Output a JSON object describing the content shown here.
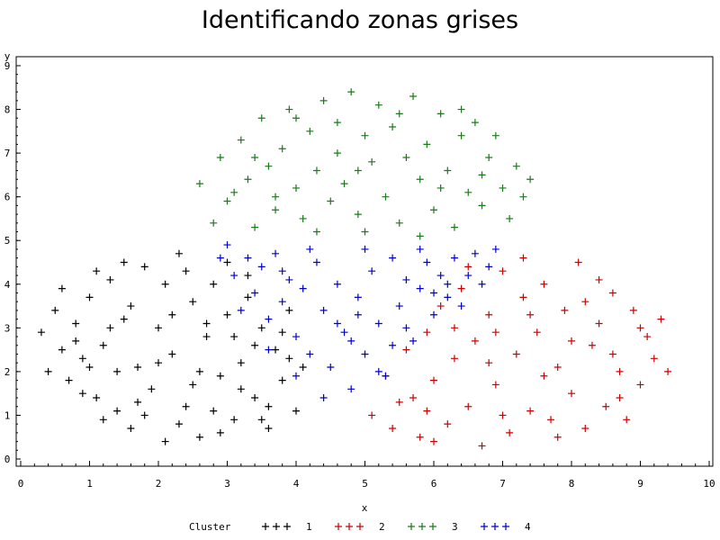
{
  "chart_data": {
    "type": "scatter",
    "title": "Identificando zonas grises",
    "xlabel": "x",
    "ylabel": "y",
    "xlim": [
      0,
      10
    ],
    "ylim": [
      0,
      9
    ],
    "xticks": [
      "0",
      "1",
      "2",
      "3",
      "4",
      "5",
      "6",
      "7",
      "8",
      "9",
      "10"
    ],
    "yticks": [
      "0",
      "1",
      "2",
      "3",
      "4",
      "5",
      "6",
      "7",
      "8",
      "9"
    ],
    "marker": "plus",
    "grid": false,
    "legend": {
      "title": "Cluster",
      "placement": "bottom-center",
      "marker_text": "+ + +"
    },
    "series": [
      {
        "name": "1",
        "color": "#000000",
        "points": [
          [
            0.3,
            2.9
          ],
          [
            0.5,
            3.4
          ],
          [
            0.6,
            2.5
          ],
          [
            0.7,
            1.8
          ],
          [
            0.8,
            3.1
          ],
          [
            0.9,
            2.3
          ],
          [
            1.0,
            3.7
          ],
          [
            1.1,
            1.4
          ],
          [
            1.2,
            2.6
          ],
          [
            1.3,
            4.1
          ],
          [
            1.4,
            1.1
          ],
          [
            1.5,
            3.2
          ],
          [
            1.6,
            0.7
          ],
          [
            1.7,
            2.1
          ],
          [
            1.8,
            4.4
          ],
          [
            1.9,
            1.6
          ],
          [
            2.0,
            3.0
          ],
          [
            2.1,
            0.4
          ],
          [
            2.2,
            2.4
          ],
          [
            2.3,
            4.7
          ],
          [
            2.4,
            1.2
          ],
          [
            2.5,
            3.6
          ],
          [
            2.6,
            0.5
          ],
          [
            2.7,
            2.8
          ],
          [
            2.8,
            4.0
          ],
          [
            2.9,
            1.9
          ],
          [
            3.0,
            3.3
          ],
          [
            3.1,
            0.9
          ],
          [
            3.2,
            2.2
          ],
          [
            3.3,
            4.2
          ],
          [
            3.4,
            1.4
          ],
          [
            3.5,
            3.0
          ],
          [
            3.6,
            0.7
          ],
          [
            3.7,
            2.5
          ],
          [
            3.8,
            1.8
          ],
          [
            3.9,
            3.4
          ],
          [
            4.0,
            1.1
          ],
          [
            4.1,
            2.1
          ],
          [
            0.4,
            2.0
          ],
          [
            0.6,
            3.9
          ],
          [
            0.9,
            1.5
          ],
          [
            1.1,
            4.3
          ],
          [
            1.2,
            0.9
          ],
          [
            1.4,
            2.0
          ],
          [
            1.6,
            3.5
          ],
          [
            1.8,
            1.0
          ],
          [
            2.0,
            2.2
          ],
          [
            2.1,
            4.0
          ],
          [
            2.3,
            0.8
          ],
          [
            2.5,
            1.7
          ],
          [
            2.7,
            3.1
          ],
          [
            2.9,
            0.6
          ],
          [
            3.0,
            4.5
          ],
          [
            3.2,
            1.6
          ],
          [
            3.4,
            2.6
          ],
          [
            3.6,
            1.2
          ],
          [
            3.8,
            2.9
          ],
          [
            0.8,
            2.7
          ],
          [
            1.3,
            3.0
          ],
          [
            1.7,
            1.3
          ],
          [
            2.2,
            3.3
          ],
          [
            2.6,
            2.0
          ],
          [
            3.1,
            2.8
          ],
          [
            3.5,
            0.9
          ],
          [
            3.9,
            2.3
          ],
          [
            1.0,
            2.1
          ],
          [
            1.5,
            4.5
          ],
          [
            2.4,
            4.3
          ],
          [
            2.8,
            1.1
          ],
          [
            3.3,
            3.7
          ]
        ]
      },
      {
        "name": "2",
        "color": "#cc0000",
        "points": [
          [
            5.1,
            1.0
          ],
          [
            5.3,
            1.9
          ],
          [
            5.4,
            0.7
          ],
          [
            5.6,
            2.5
          ],
          [
            5.7,
            1.4
          ],
          [
            5.8,
            0.5
          ],
          [
            5.9,
            2.9
          ],
          [
            6.0,
            1.8
          ],
          [
            6.1,
            3.5
          ],
          [
            6.2,
            0.8
          ],
          [
            6.3,
            2.3
          ],
          [
            6.4,
            3.9
          ],
          [
            6.5,
            1.2
          ],
          [
            6.6,
            2.7
          ],
          [
            6.7,
            0.3
          ],
          [
            6.8,
            3.3
          ],
          [
            6.9,
            1.7
          ],
          [
            7.0,
            4.3
          ],
          [
            7.1,
            0.6
          ],
          [
            7.2,
            2.4
          ],
          [
            7.3,
            3.7
          ],
          [
            7.4,
            1.1
          ],
          [
            7.5,
            2.9
          ],
          [
            7.6,
            4.0
          ],
          [
            7.7,
            0.9
          ],
          [
            7.8,
            2.1
          ],
          [
            7.9,
            3.4
          ],
          [
            8.0,
            1.5
          ],
          [
            8.1,
            4.5
          ],
          [
            8.2,
            0.7
          ],
          [
            8.3,
            2.6
          ],
          [
            8.4,
            3.1
          ],
          [
            8.5,
            1.2
          ],
          [
            8.6,
            3.8
          ],
          [
            8.7,
            2.0
          ],
          [
            8.8,
            0.9
          ],
          [
            8.9,
            3.4
          ],
          [
            9.0,
            1.7
          ],
          [
            9.1,
            2.8
          ],
          [
            9.2,
            2.3
          ],
          [
            9.3,
            3.2
          ],
          [
            9.4,
            2.0
          ],
          [
            5.5,
            1.3
          ],
          [
            6.0,
            0.4
          ],
          [
            6.3,
            3.0
          ],
          [
            6.8,
            2.2
          ],
          [
            7.0,
            1.0
          ],
          [
            7.3,
            4.6
          ],
          [
            7.6,
            1.9
          ],
          [
            8.0,
            2.7
          ],
          [
            8.4,
            4.1
          ],
          [
            8.7,
            1.4
          ],
          [
            9.0,
            3.0
          ],
          [
            6.5,
            4.4
          ],
          [
            7.8,
            0.5
          ],
          [
            8.2,
            3.6
          ],
          [
            6.9,
            2.9
          ],
          [
            7.4,
            3.3
          ],
          [
            5.9,
            1.1
          ],
          [
            8.6,
            2.4
          ]
        ]
      },
      {
        "name": "3",
        "color": "#1a7a1a",
        "points": [
          [
            2.6,
            6.3
          ],
          [
            2.8,
            5.4
          ],
          [
            2.9,
            6.9
          ],
          [
            3.0,
            5.9
          ],
          [
            3.2,
            7.3
          ],
          [
            3.3,
            6.4
          ],
          [
            3.4,
            5.3
          ],
          [
            3.5,
            7.8
          ],
          [
            3.6,
            6.7
          ],
          [
            3.7,
            5.7
          ],
          [
            3.8,
            7.1
          ],
          [
            3.9,
            8.0
          ],
          [
            4.0,
            6.2
          ],
          [
            4.1,
            5.5
          ],
          [
            4.2,
            7.5
          ],
          [
            4.3,
            6.6
          ],
          [
            4.4,
            8.2
          ],
          [
            4.5,
            5.9
          ],
          [
            4.6,
            7.0
          ],
          [
            4.7,
            6.3
          ],
          [
            4.8,
            8.4
          ],
          [
            4.9,
            5.6
          ],
          [
            5.0,
            7.4
          ],
          [
            5.1,
            6.8
          ],
          [
            5.2,
            8.1
          ],
          [
            5.3,
            6.0
          ],
          [
            5.4,
            7.6
          ],
          [
            5.5,
            5.4
          ],
          [
            5.6,
            6.9
          ],
          [
            5.7,
            8.3
          ],
          [
            5.8,
            6.4
          ],
          [
            5.9,
            7.2
          ],
          [
            6.0,
            5.7
          ],
          [
            6.1,
            7.9
          ],
          [
            6.2,
            6.6
          ],
          [
            6.3,
            5.3
          ],
          [
            6.4,
            7.4
          ],
          [
            6.5,
            6.1
          ],
          [
            6.6,
            7.7
          ],
          [
            6.7,
            5.8
          ],
          [
            6.8,
            6.9
          ],
          [
            6.9,
            7.4
          ],
          [
            7.0,
            6.2
          ],
          [
            7.1,
            5.5
          ],
          [
            7.2,
            6.7
          ],
          [
            7.3,
            6.0
          ],
          [
            7.4,
            6.4
          ],
          [
            3.1,
            6.1
          ],
          [
            3.7,
            6.0
          ],
          [
            4.3,
            5.2
          ],
          [
            4.9,
            6.6
          ],
          [
            5.5,
            7.9
          ],
          [
            6.1,
            6.2
          ],
          [
            6.7,
            6.5
          ],
          [
            4.0,
            7.8
          ],
          [
            5.0,
            5.2
          ],
          [
            5.8,
            5.1
          ],
          [
            3.4,
            6.9
          ],
          [
            4.6,
            7.7
          ],
          [
            6.4,
            8.0
          ]
        ]
      },
      {
        "name": "4",
        "color": "#0000cc",
        "points": [
          [
            2.9,
            4.6
          ],
          [
            3.0,
            4.9
          ],
          [
            3.1,
            4.2
          ],
          [
            3.3,
            4.6
          ],
          [
            3.4,
            3.8
          ],
          [
            3.5,
            4.4
          ],
          [
            3.6,
            3.2
          ],
          [
            3.7,
            4.7
          ],
          [
            3.8,
            3.6
          ],
          [
            3.9,
            4.1
          ],
          [
            4.0,
            2.8
          ],
          [
            4.1,
            3.9
          ],
          [
            4.2,
            2.4
          ],
          [
            4.3,
            4.5
          ],
          [
            4.4,
            3.4
          ],
          [
            4.5,
            2.1
          ],
          [
            4.6,
            4.0
          ],
          [
            4.7,
            2.9
          ],
          [
            4.8,
            1.6
          ],
          [
            4.9,
            3.7
          ],
          [
            5.0,
            2.4
          ],
          [
            5.1,
            4.3
          ],
          [
            5.2,
            3.1
          ],
          [
            5.3,
            1.9
          ],
          [
            5.4,
            4.6
          ],
          [
            5.5,
            3.5
          ],
          [
            5.6,
            4.1
          ],
          [
            5.7,
            2.7
          ],
          [
            5.8,
            3.9
          ],
          [
            5.9,
            4.5
          ],
          [
            6.0,
            3.3
          ],
          [
            6.1,
            4.2
          ],
          [
            6.2,
            3.7
          ],
          [
            6.3,
            4.6
          ],
          [
            6.4,
            3.5
          ],
          [
            6.5,
            4.2
          ],
          [
            6.6,
            4.7
          ],
          [
            6.7,
            4.0
          ],
          [
            6.8,
            4.4
          ],
          [
            6.9,
            4.8
          ],
          [
            3.2,
            3.4
          ],
          [
            3.6,
            2.5
          ],
          [
            4.0,
            1.9
          ],
          [
            4.4,
            1.4
          ],
          [
            4.8,
            2.7
          ],
          [
            5.2,
            2.0
          ],
          [
            5.6,
            3.0
          ],
          [
            6.0,
            3.8
          ],
          [
            4.2,
            4.8
          ],
          [
            5.0,
            4.8
          ],
          [
            5.8,
            4.8
          ],
          [
            4.6,
            3.1
          ],
          [
            3.8,
            4.3
          ],
          [
            5.4,
            2.6
          ],
          [
            6.2,
            4.0
          ],
          [
            4.9,
            3.3
          ]
        ]
      }
    ]
  }
}
